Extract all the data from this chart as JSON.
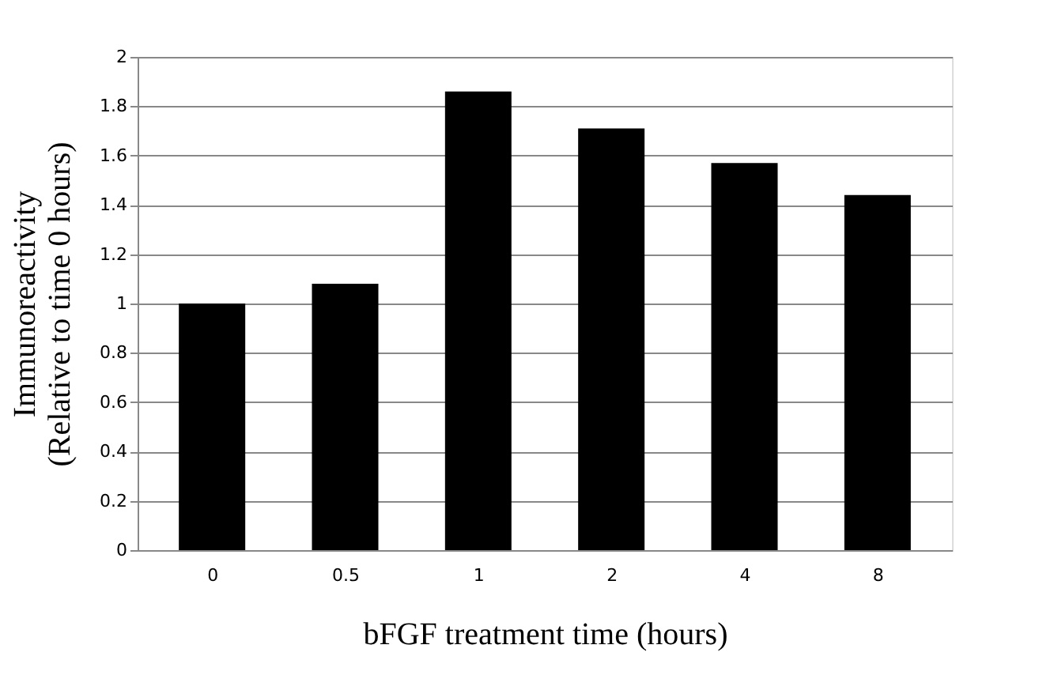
{
  "chart_data": {
    "type": "bar",
    "xlabel": "bFGF treatment time (hours)",
    "ylabel": "Immunoreactivity\n(Relative to time 0 hours)",
    "categories": [
      "0",
      "0.5",
      "1",
      "2",
      "4",
      "8"
    ],
    "values": [
      1.0,
      1.08,
      1.86,
      1.71,
      1.57,
      1.44
    ],
    "color": "#000000",
    "ylim": [
      0,
      2
    ],
    "yticks": [
      0,
      0.2,
      0.4,
      0.6,
      0.8,
      1,
      1.2,
      1.4,
      1.6,
      1.8,
      2
    ],
    "grid": "y"
  }
}
